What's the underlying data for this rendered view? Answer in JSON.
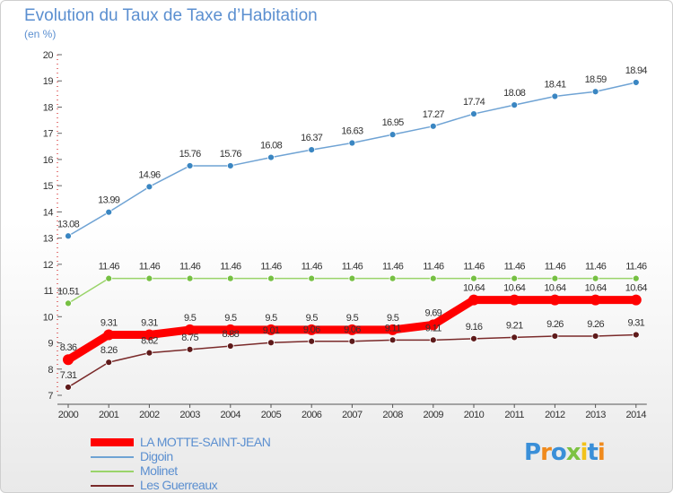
{
  "chart_data": {
    "type": "line",
    "title": "Evolution du Taux de Taxe d’Habitation",
    "subtitle": "(en %)",
    "ylim": [
      7,
      20
    ],
    "yticks": [
      7,
      8,
      9,
      10,
      11,
      12,
      13,
      14,
      15,
      16,
      17,
      18,
      19,
      20
    ],
    "categories": [
      "2000",
      "2001",
      "2002",
      "2003",
      "2004",
      "2005",
      "2006",
      "2007",
      "2008",
      "2009",
      "2010",
      "2011",
      "2012",
      "2013",
      "2014"
    ],
    "series": [
      {
        "name": "Digoin",
        "color": "#6fa3d4",
        "marker": "#3a86c2",
        "values": [
          13.08,
          13.99,
          14.96,
          15.76,
          15.76,
          16.08,
          16.37,
          16.63,
          16.95,
          17.27,
          17.74,
          18.08,
          18.41,
          18.59,
          18.94
        ],
        "labels": [
          "13.08",
          "13.99",
          "14.96",
          "15.76",
          "15.76",
          "16.08",
          "16.37",
          "16.63",
          "16.95",
          "17.27",
          "17.74",
          "18.08",
          "18.41",
          "18.59",
          "18.94"
        ]
      },
      {
        "name": "Molinet",
        "color": "#9ad46a",
        "marker": "#76c043",
        "values": [
          10.51,
          11.46,
          11.46,
          11.46,
          11.46,
          11.46,
          11.46,
          11.46,
          11.46,
          11.46,
          11.46,
          11.46,
          11.46,
          11.46,
          11.46
        ],
        "labels": [
          "10.51",
          "11.46",
          "11.46",
          "11.46",
          "11.46",
          "11.46",
          "11.46",
          "11.46",
          "11.46",
          "11.46",
          "11.46",
          "11.46",
          "11.46",
          "11.46",
          "11.46"
        ]
      },
      {
        "name": "Les Guerreaux",
        "color": "#7a2a2a",
        "marker": "#5e1a1a",
        "values": [
          7.31,
          8.26,
          8.62,
          8.75,
          8.88,
          9.01,
          9.06,
          9.06,
          9.11,
          9.11,
          9.16,
          9.21,
          9.26,
          9.26,
          9.31
        ],
        "labels": [
          "7.31",
          "8.26",
          "8.62",
          "8.75",
          "8.88",
          "9.01",
          "9.06",
          "9.06",
          "9.11",
          "9.11",
          "9.16",
          "9.21",
          "9.26",
          "9.26",
          "9.31"
        ]
      },
      {
        "name": "LA MOTTE-SAINT-JEAN",
        "color": "#ff0000",
        "marker": "#ff0000",
        "values": [
          8.36,
          9.31,
          9.31,
          9.5,
          9.5,
          9.5,
          9.5,
          9.5,
          9.5,
          9.69,
          10.64,
          10.64,
          10.64,
          10.64,
          10.64
        ],
        "labels": [
          "8.36",
          "9.31",
          "9.31",
          "9.5",
          "9.5",
          "9.5",
          "9.5",
          "9.5",
          "9.5",
          "9.69",
          "10.64",
          "10.64",
          "10.64",
          "10.64",
          "10.64"
        ]
      }
    ],
    "legend": [
      "LA MOTTE-SAINT-JEAN",
      "Digoin",
      "Molinet",
      "Les Guerreaux"
    ]
  },
  "logo": {
    "letters": [
      "P",
      "r",
      "o",
      "x",
      "i",
      "t",
      "i"
    ],
    "colors": [
      "#3a8fd8",
      "#f08a1c",
      "#3a8fd8",
      "#7cc242",
      "#f2c21a",
      "#3a8fd8",
      "#f08a1c"
    ]
  }
}
